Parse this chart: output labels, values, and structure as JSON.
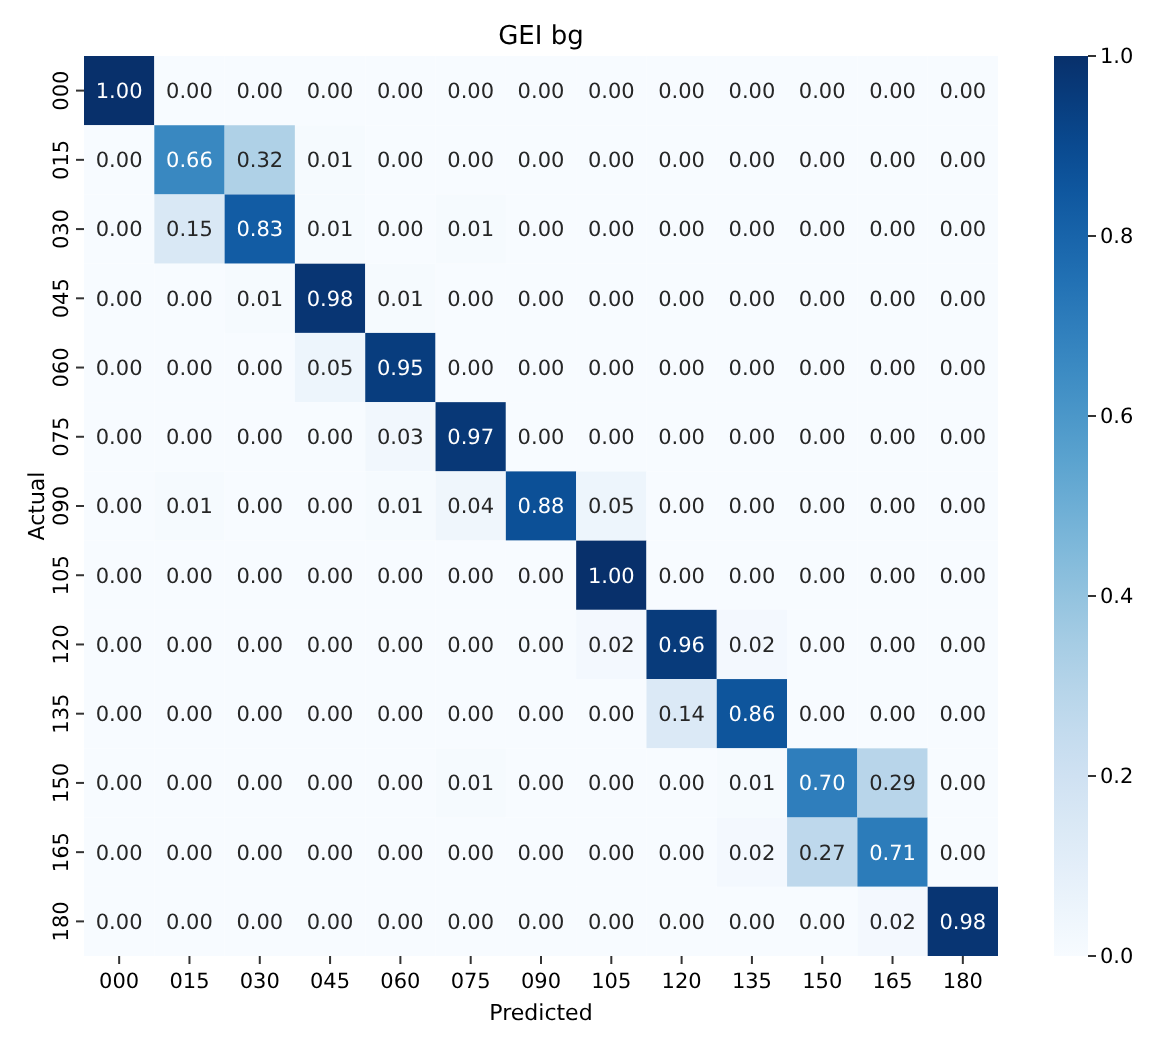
{
  "chart_data": {
    "type": "heatmap",
    "title": "GEI bg",
    "xlabel": "Predicted",
    "ylabel": "Actual",
    "categories": [
      "000",
      "015",
      "030",
      "045",
      "060",
      "075",
      "090",
      "105",
      "120",
      "135",
      "150",
      "165",
      "180"
    ],
    "y_categories": [
      "000",
      "015",
      "030",
      "045",
      "060",
      "075",
      "090",
      "105",
      "120",
      "135",
      "150",
      "165",
      "180"
    ],
    "cells": [
      [
        1.0,
        0,
        0,
        0,
        0,
        0,
        0,
        0,
        0,
        0,
        0,
        0,
        0
      ],
      [
        0,
        0.66,
        0.32,
        0.01,
        0,
        0,
        0,
        0,
        0,
        0,
        0,
        0,
        0
      ],
      [
        0,
        0.15,
        0.83,
        0.01,
        0,
        0.01,
        0,
        0,
        0,
        0,
        0,
        0,
        0
      ],
      [
        0,
        0,
        0.01,
        0.98,
        0.01,
        0,
        0,
        0,
        0,
        0,
        0,
        0,
        0
      ],
      [
        0,
        0,
        0,
        0.05,
        0.95,
        0,
        0,
        0,
        0,
        0,
        0,
        0,
        0
      ],
      [
        0,
        0,
        0,
        0,
        0.03,
        0.97,
        0,
        0,
        0,
        0,
        0,
        0,
        0
      ],
      [
        0,
        0.01,
        0,
        0,
        0.01,
        0.04,
        0.88,
        0.05,
        0,
        0,
        0,
        0,
        0
      ],
      [
        0,
        0,
        0,
        0,
        0,
        0,
        0,
        1.0,
        0,
        0,
        0,
        0,
        0
      ],
      [
        0,
        0,
        0,
        0,
        0,
        0,
        0,
        0.02,
        0.96,
        0.02,
        0,
        0,
        0
      ],
      [
        0,
        0,
        0,
        0,
        0,
        0,
        0,
        0,
        0.14,
        0.86,
        0,
        0,
        0
      ],
      [
        0,
        0,
        0,
        0,
        0,
        0.01,
        0,
        0,
        0,
        0.01,
        0.7,
        0.29,
        0
      ],
      [
        0,
        0,
        0,
        0,
        0,
        0,
        0,
        0,
        0,
        0.02,
        0.27,
        0.71,
        0
      ],
      [
        0,
        0,
        0,
        0,
        0,
        0,
        0,
        0,
        0,
        0,
        0,
        0.02,
        0.98
      ]
    ],
    "cell_labels": [
      [
        "1.00",
        "0.00",
        "0.00",
        "0.00",
        "0.00",
        "0.00",
        "0.00",
        "0.00",
        "0.00",
        "0.00",
        "0.00",
        "0.00",
        "0.00"
      ],
      [
        "0.00",
        "0.66",
        "0.32",
        "0.01",
        "0.00",
        "0.00",
        "0.00",
        "0.00",
        "0.00",
        "0.00",
        "0.00",
        "0.00",
        "0.00"
      ],
      [
        "0.00",
        "0.15",
        "0.83",
        "0.01",
        "0.00",
        "0.01",
        "0.00",
        "0.00",
        "0.00",
        "0.00",
        "0.00",
        "0.00",
        "0.00"
      ],
      [
        "0.00",
        "0.00",
        "0.01",
        "0.98",
        "0.01",
        "0.00",
        "0.00",
        "0.00",
        "0.00",
        "0.00",
        "0.00",
        "0.00",
        "0.00"
      ],
      [
        "0.00",
        "0.00",
        "0.00",
        "0.05",
        "0.95",
        "0.00",
        "0.00",
        "0.00",
        "0.00",
        "0.00",
        "0.00",
        "0.00",
        "0.00"
      ],
      [
        "0.00",
        "0.00",
        "0.00",
        "0.00",
        "0.03",
        "0.97",
        "0.00",
        "0.00",
        "0.00",
        "0.00",
        "0.00",
        "0.00",
        "0.00"
      ],
      [
        "0.00",
        "0.01",
        "0.00",
        "0.00",
        "0.01",
        "0.04",
        "0.88",
        "0.05",
        "0.00",
        "0.00",
        "0.00",
        "0.00",
        "0.00"
      ],
      [
        "0.00",
        "0.00",
        "0.00",
        "0.00",
        "0.00",
        "0.00",
        "0.00",
        "1.00",
        "0.00",
        "0.00",
        "0.00",
        "0.00",
        "0.00"
      ],
      [
        "0.00",
        "0.00",
        "0.00",
        "0.00",
        "0.00",
        "0.00",
        "0.00",
        "0.02",
        "0.96",
        "0.02",
        "0.00",
        "0.00",
        "0.00"
      ],
      [
        "0.00",
        "0.00",
        "0.00",
        "0.00",
        "0.00",
        "0.00",
        "0.00",
        "0.00",
        "0.14",
        "0.86",
        "0.00",
        "0.00",
        "0.00"
      ],
      [
        "0.00",
        "0.00",
        "0.00",
        "0.00",
        "0.00",
        "0.01",
        "0.00",
        "0.00",
        "0.00",
        "0.01",
        "0.70",
        "0.29",
        "0.00"
      ],
      [
        "0.00",
        "0.00",
        "0.00",
        "0.00",
        "0.00",
        "0.00",
        "0.00",
        "0.00",
        "0.00",
        "0.02",
        "0.27",
        "0.71",
        "0.00"
      ],
      [
        "0.00",
        "0.00",
        "0.00",
        "0.00",
        "0.00",
        "0.00",
        "0.00",
        "0.00",
        "0.00",
        "0.00",
        "0.00",
        "0.02",
        "0.98"
      ]
    ],
    "clim": [
      0,
      1
    ],
    "cticks": [
      {
        "value": 0,
        "label": "0.0"
      },
      {
        "value": 0.2,
        "label": "0.2"
      },
      {
        "value": 0.4,
        "label": "0.4"
      },
      {
        "value": 0.6,
        "label": "0.6"
      },
      {
        "value": 0.8,
        "label": "0.8"
      },
      {
        "value": 1,
        "label": "1.0"
      }
    ]
  }
}
